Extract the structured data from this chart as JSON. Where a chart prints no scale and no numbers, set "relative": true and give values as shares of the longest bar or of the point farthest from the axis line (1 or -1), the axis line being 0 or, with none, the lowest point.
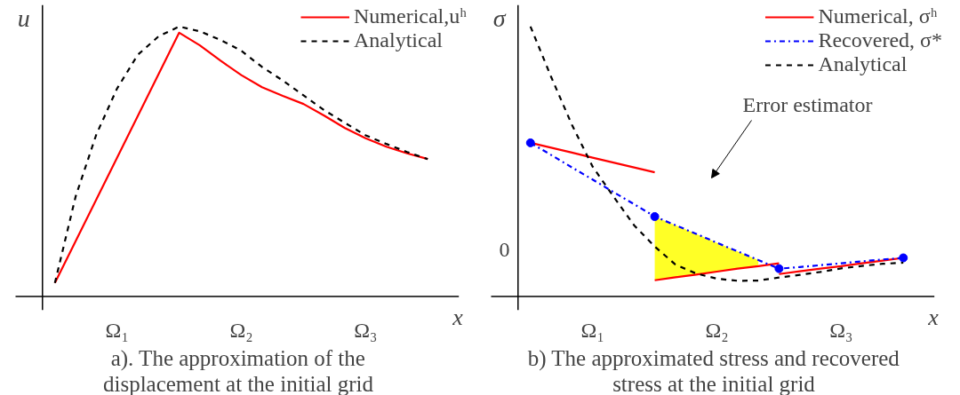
{
  "chart_data": [
    {
      "type": "line",
      "title": "a). The approximation of the displacement at the initial grid",
      "xlabel": "x",
      "ylabel": "u",
      "relative": true,
      "categories": [
        null,
        null,
        null,
        "Ω₁",
        null,
        null,
        null,
        null,
        null,
        "Ω₂",
        null,
        null,
        null,
        null,
        null,
        "Ω₃",
        null,
        null,
        null
      ],
      "legend": "top right",
      "grid": false,
      "series": [
        {
          "name": "Numerical,uʰ",
          "color": "#ff0000",
          "line_style": "solid",
          "values": [
            0.05,
            0.205,
            0.359,
            0.514,
            0.668,
            0.823,
            0.977,
            0.93,
            0.873,
            0.82,
            0.775,
            0.743,
            0.713,
            0.67,
            0.624,
            0.586,
            0.555,
            0.53,
            0.509
          ]
        },
        {
          "name": "Analytical",
          "color": "#000000",
          "line_style": "dashed",
          "values": [
            0.05,
            0.37,
            0.6,
            0.77,
            0.895,
            0.963,
            1.0,
            0.982,
            0.95,
            0.91,
            0.85,
            0.8,
            0.745,
            0.69,
            0.643,
            0.597,
            0.565,
            0.535,
            0.509
          ]
        }
      ]
    },
    {
      "type": "line",
      "title": "b) The approximated stress and recovered stress at the initial grid",
      "xlabel": "x",
      "ylabel": "σ",
      "relative": true,
      "categories": [
        null,
        null,
        null,
        "Ω₁",
        null,
        null,
        null,
        null,
        null,
        "Ω₂",
        null,
        null,
        null,
        null,
        null,
        "Ω₃",
        null,
        null,
        null
      ],
      "legend": "top right",
      "grid": false,
      "annotations": [
        "0",
        "Error estimator"
      ],
      "series": [
        {
          "name": "Numerical, σʰ",
          "color": "#ff0000",
          "line_style": "solid",
          "values": [
            0.569,
            0.551,
            0.533,
            0.514,
            0.496,
            0.478,
            0.46,
            null,
            null,
            null,
            null,
            null,
            null,
            null,
            null,
            null,
            null,
            null,
            null
          ]
        },
        {
          "color": "#ff0000",
          "line_style": "solid",
          "values": [
            null,
            null,
            null,
            null,
            null,
            null,
            0.06,
            0.071,
            0.081,
            0.092,
            0.103,
            0.112,
            0.123,
            null,
            null,
            null,
            null,
            null,
            null
          ]
        },
        {
          "color": "#ff0000",
          "line_style": "solid",
          "values": [
            null,
            null,
            null,
            null,
            null,
            null,
            null,
            null,
            null,
            null,
            null,
            null,
            0.083,
            0.093,
            0.103,
            0.112,
            0.123,
            0.133,
            0.143
          ]
        },
        {
          "name": "Recovered, σ*",
          "color": "#0000ff",
          "line_style": "dashdot",
          "values": [
            0.569,
            0.524,
            0.478,
            0.433,
            0.387,
            0.342,
            0.296,
            0.264,
            0.232,
            0.199,
            0.167,
            0.135,
            0.103,
            0.109,
            0.116,
            0.123,
            0.13,
            0.137,
            0.143
          ],
          "lower": [
            null,
            null,
            null,
            null,
            null,
            null,
            0.06,
            0.071,
            0.081,
            0.092,
            0.103,
            0.112,
            null,
            null,
            null,
            null,
            null,
            null,
            null
          ],
          "upper": [
            null,
            null,
            null,
            null,
            null,
            null,
            0.296,
            0.264,
            0.232,
            0.199,
            0.167,
            0.135,
            null,
            null,
            null,
            null,
            null,
            null,
            null
          ]
        },
        {
          "type": "scatter",
          "color": "#0000ff",
          "marker": "circle",
          "values": [
            0.569,
            null,
            null,
            null,
            null,
            null,
            0.296,
            null,
            null,
            null,
            null,
            null,
            0.103,
            null,
            null,
            null,
            null,
            null,
            0.143
          ]
        },
        {
          "name": "Analytical",
          "color": "#000000",
          "line_style": "dashed",
          "values": [
            1.0,
            0.813,
            0.636,
            0.481,
            0.371,
            0.264,
            0.185,
            0.118,
            0.085,
            0.066,
            0.058,
            0.059,
            0.07,
            0.08,
            0.091,
            0.104,
            0.113,
            0.121,
            0.125
          ]
        }
      ]
    }
  ]
}
